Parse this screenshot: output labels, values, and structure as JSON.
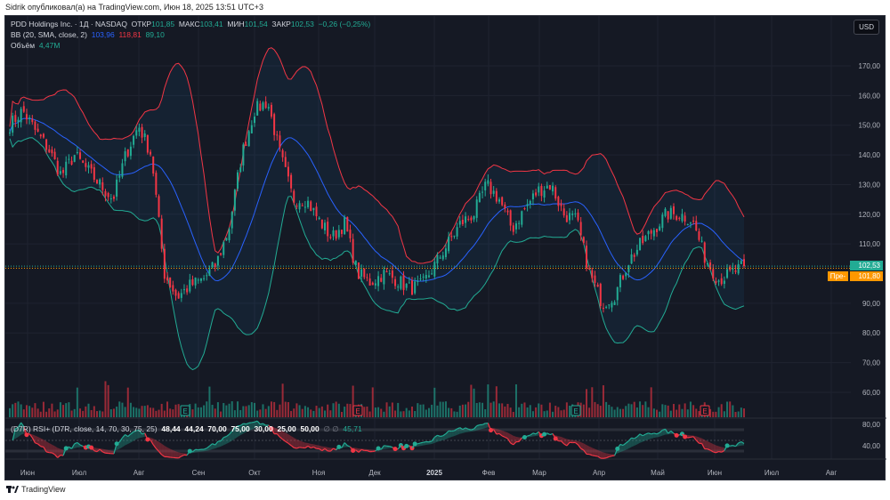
{
  "publisher": "Sidrik опубликовал(а) на TradingView.com, Июн 18, 2025 13:51 UTC+3",
  "legend": {
    "symbol": "PDD Holdings Inc. · 1Д · NASDAQ",
    "open_label": "ОТКР",
    "open": "101,85",
    "high_label": "МАКС",
    "high": "103,41",
    "low_label": "МИН",
    "low": "101,54",
    "close_label": "ЗАКР",
    "close": "102,53",
    "change": "−0,26 (−0,25%)",
    "bb_label": "BB (20, SMA, close, 2)",
    "bb_basis": "103,96",
    "bb_upper": "118,81",
    "bb_lower": "89,10",
    "vol_label": "Объём",
    "vol": "4,47M",
    "rsi_label": "(D7R) RSI+ (D7R, close, 14, 70, 30, 75, 25)",
    "rsi_vals": [
      "48,44",
      "44,24",
      "70,00",
      "75,00",
      "30,00",
      "25,00",
      "50,00"
    ],
    "rsi_na": "∅ ∅",
    "rsi_last": "45,71"
  },
  "currency": "USD",
  "last_price": "102,53",
  "premarket_label": "Пре-",
  "premarket_price": "101,80",
  "colors": {
    "up": "#22ab94",
    "down": "#f23645",
    "basis": "#2962ff",
    "pre": "#ff9800"
  },
  "footer": "TradingView",
  "chart_data": {
    "type": "candlestick",
    "price_ticks": [
      "170,00",
      "160,00",
      "150,00",
      "140,00",
      "130,00",
      "120,00",
      "110,00",
      "90,00",
      "80,00",
      "70,00",
      "60,00"
    ],
    "rsi_ticks": [
      "80,00",
      "40,00"
    ],
    "months": [
      "Июн",
      "Июл",
      "Авг",
      "Сен",
      "Окт",
      "Ноя",
      "Дек",
      "2025",
      "Фев",
      "Мар",
      "Апр",
      "Май",
      "Июн",
      "Июл",
      "Авг"
    ],
    "close_keypoints": [
      150,
      155,
      148,
      142,
      133,
      140,
      135,
      130,
      125,
      140,
      150,
      140,
      100,
      92,
      96,
      98,
      103,
      115,
      140,
      155,
      158,
      140,
      125,
      125,
      118,
      112,
      117,
      100,
      97,
      100,
      98,
      95,
      96,
      103,
      110,
      117,
      120,
      130,
      125,
      115,
      122,
      128,
      130,
      120,
      118,
      100,
      90,
      93,
      104,
      110,
      115,
      120,
      120,
      118,
      105,
      98,
      100,
      102.5
    ],
    "earnings": [
      "E",
      "E",
      "E",
      "E"
    ]
  }
}
